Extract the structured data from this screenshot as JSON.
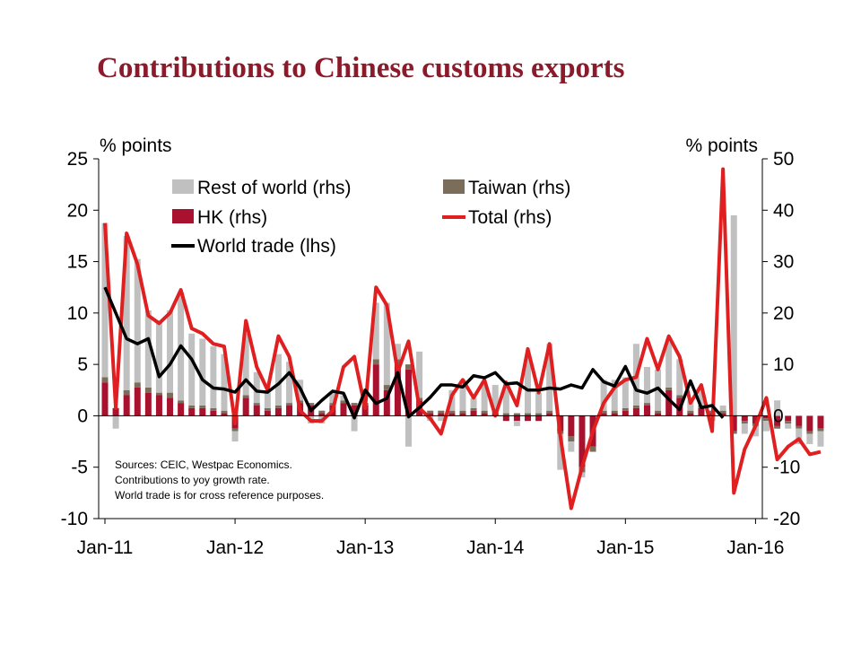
{
  "chart_data": {
    "type": "bar",
    "title": "Contributions to Chinese customs exports",
    "ylabel_left": "% points",
    "ylabel_right": "% points",
    "ylim_left": [
      -10,
      25
    ],
    "ylim_right": [
      -20,
      50
    ],
    "yticks_left": [
      "25",
      "20",
      "15",
      "10",
      "5",
      "0",
      "-5",
      "-10"
    ],
    "yticks_right": [
      "50",
      "40",
      "30",
      "20",
      "10",
      "0",
      "-10",
      "-20"
    ],
    "x_ticks": [
      "Jan-11",
      "Jan-12",
      "Jan-13",
      "Jan-14",
      "Jan-15",
      "Jan-16"
    ],
    "x_start": "2011-01",
    "legend": {
      "rest": "Rest of world (rhs)",
      "taiwan": "Taiwan (rhs)",
      "hk": "HK (rhs)",
      "total": "Total (rhs)",
      "world": "World trade (lhs)"
    },
    "notes": [
      "Sources: CEIC, Westpac Economics.",
      "Contributions to yoy growth rate.",
      "World trade is for cross reference purposes."
    ],
    "colors": {
      "rest": "#c0c0c0",
      "taiwan": "#7a6e5a",
      "hk": "#a8122e",
      "total": "#e02020",
      "world": "#000000",
      "title": "#8b1a2b"
    },
    "series": [
      {
        "key": "hk",
        "axis": "rhs",
        "values": [
          6.5,
          1.5,
          4,
          5.5,
          4.5,
          4,
          3.5,
          2.5,
          1.5,
          1.5,
          1,
          0.5,
          -2.5,
          3.5,
          2,
          1,
          1.5,
          2,
          2.5,
          2,
          0.5,
          2,
          2.5,
          2,
          2,
          10,
          5,
          10,
          9,
          3,
          0.5,
          0.5,
          0.5,
          0.5,
          1,
          0.5,
          0.5,
          -1,
          -1,
          -1,
          -1,
          0.5,
          -3,
          -4,
          -10,
          -6,
          0.5,
          0.5,
          1,
          1.5,
          2,
          0.5,
          5,
          3.5,
          0.5,
          1.5,
          0.5,
          0.5,
          -3,
          -1,
          -1.5,
          -0.5,
          -2,
          -1,
          -2,
          -3,
          -2.5
        ]
      },
      {
        "key": "taiwan",
        "axis": "rhs",
        "values": [
          1,
          0,
          1,
          1,
          1,
          0.5,
          1,
          0.5,
          0.5,
          0.5,
          0.5,
          0.5,
          -0.5,
          0.5,
          0.5,
          0.5,
          0.5,
          0.5,
          0.5,
          0.5,
          0.5,
          0.5,
          0.5,
          0.5,
          0.5,
          1,
          1,
          1,
          1,
          0.5,
          0.5,
          0.5,
          0.5,
          0.5,
          0.5,
          0.5,
          0.5,
          0.5,
          0.5,
          0.5,
          0.5,
          0.5,
          -0.5,
          -1,
          -1,
          -1,
          0.5,
          0.5,
          0.5,
          0.5,
          0.5,
          0.5,
          0.5,
          0.5,
          0.5,
          0.5,
          0.5,
          0.5,
          -0.5,
          -0.5,
          -0.5,
          -0.5,
          -0.5,
          -0.5,
          -0.5,
          -0.5,
          -0.5
        ]
      },
      {
        "key": "rest",
        "axis": "rhs",
        "values": [
          30,
          -2.5,
          30,
          24,
          15,
          14,
          16,
          21,
          14,
          13,
          12,
          11,
          -2,
          12,
          6,
          3,
          10,
          8,
          4,
          -1.5,
          -1.5,
          2,
          1,
          -3,
          0,
          11,
          16,
          3,
          -6,
          9,
          -1,
          -1,
          4,
          6,
          2,
          5,
          5,
          5,
          -1,
          11,
          4,
          13,
          -7,
          -2,
          -1,
          0,
          6,
          6,
          6,
          12,
          7,
          8,
          9,
          7,
          2,
          3,
          -1,
          1,
          39,
          -2,
          -2,
          -2,
          3,
          -1,
          -3,
          -2,
          -3
        ]
      },
      {
        "key": "total",
        "axis": "rhs",
        "values": [
          37.5,
          1.5,
          35.5,
          29.5,
          19.5,
          18,
          20,
          24.5,
          17,
          16,
          14,
          13.5,
          -1.5,
          18.5,
          9.5,
          5,
          15.5,
          11.5,
          1,
          -1,
          -1,
          1,
          9.5,
          11.5,
          1.5,
          25,
          21.5,
          8.5,
          14.5,
          1.5,
          -0.5,
          -3.5,
          4,
          7,
          3.5,
          7,
          0,
          6.5,
          2,
          13,
          4.5,
          14,
          -4,
          -18,
          -10,
          -3,
          2.5,
          5.5,
          7,
          7.5,
          15,
          9,
          15.5,
          11.5,
          2.5,
          6,
          -3,
          48,
          -15,
          -6.5,
          -2,
          3.5,
          -8.5,
          -6,
          -4.5,
          -7.5,
          -7
        ]
      },
      {
        "key": "world",
        "axis": "lhs",
        "values": [
          12.5,
          10,
          7.5,
          7,
          7.5,
          3.8,
          5,
          6.8,
          5.5,
          3.5,
          2.7,
          2.6,
          2.3,
          3.5,
          2.4,
          2.3,
          3.1,
          4.2,
          2.7,
          0.5,
          1.5,
          2.4,
          2.2,
          -0.2,
          2.5,
          1.2,
          1.7,
          4.2,
          -0.1,
          0.8,
          1.8,
          3,
          3,
          2.8,
          3.9,
          3.7,
          4.2,
          3.1,
          3.2,
          2.5,
          2.5,
          2.7,
          2.6,
          3,
          2.7,
          4.5,
          3.3,
          2.9,
          4.8,
          2.5,
          2.2,
          2.7,
          1.6,
          0.6,
          3.4,
          0.8,
          1,
          -0.2
        ]
      }
    ]
  }
}
